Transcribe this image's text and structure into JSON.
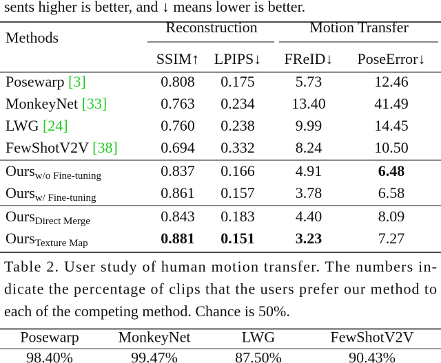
{
  "top_text": "sents higher is better, and ↓ means lower is better.",
  "table1": {
    "methods_header": "Methods",
    "group_headers": [
      "Reconstruction",
      "Motion Transfer"
    ],
    "columns": [
      "SSIM↑",
      "LPIPS↓",
      "FReID↓",
      "PoseError↓"
    ],
    "groups": [
      [
        {
          "name": "Posewarp ",
          "ref": "[3]",
          "values": [
            "0.808",
            "0.175",
            "5.73",
            "12.46"
          ],
          "bold": []
        },
        {
          "name": "MonkeyNet ",
          "ref": "[33]",
          "values": [
            "0.763",
            "0.234",
            "13.40",
            "41.49"
          ],
          "bold": []
        },
        {
          "name": "LWG ",
          "ref": "[24]",
          "values": [
            "0.760",
            "0.238",
            "9.99",
            "14.45"
          ],
          "bold": []
        },
        {
          "name": "FewShotV2V ",
          "ref": "[38]",
          "values": [
            "0.694",
            "0.332",
            "8.24",
            "10.50"
          ],
          "bold": []
        }
      ],
      [
        {
          "name": "Ours",
          "sub": "w/o Fine-tuning",
          "values": [
            "0.837",
            "0.166",
            "4.91",
            "6.48"
          ],
          "bold": [
            3
          ]
        },
        {
          "name": "Ours",
          "sub": "w/ Fine-tuning",
          "values": [
            "0.861",
            "0.157",
            "3.78",
            "6.58"
          ],
          "bold": []
        }
      ],
      [
        {
          "name": "Ours",
          "sub": "Direct Merge",
          "values": [
            "0.843",
            "0.183",
            "4.40",
            "8.09"
          ],
          "bold": []
        },
        {
          "name": "Ours",
          "sub": "Texture Map",
          "values": [
            "0.881",
            "0.151",
            "3.23",
            "7.27"
          ],
          "bold": [
            0,
            1,
            2
          ]
        }
      ]
    ]
  },
  "caption_lines": [
    "Table 2. User study of human motion transfer. The numbers in-",
    "dicate the percentage of clips that the users prefer our method to",
    "each of the competing method. Chance is 50%."
  ],
  "table2": {
    "columns": [
      "Posewarp",
      "MonkeyNet",
      "LWG",
      "FewShotV2V"
    ],
    "values": [
      "98.40%",
      "99.47%",
      "87.50%",
      "90.43%"
    ]
  }
}
